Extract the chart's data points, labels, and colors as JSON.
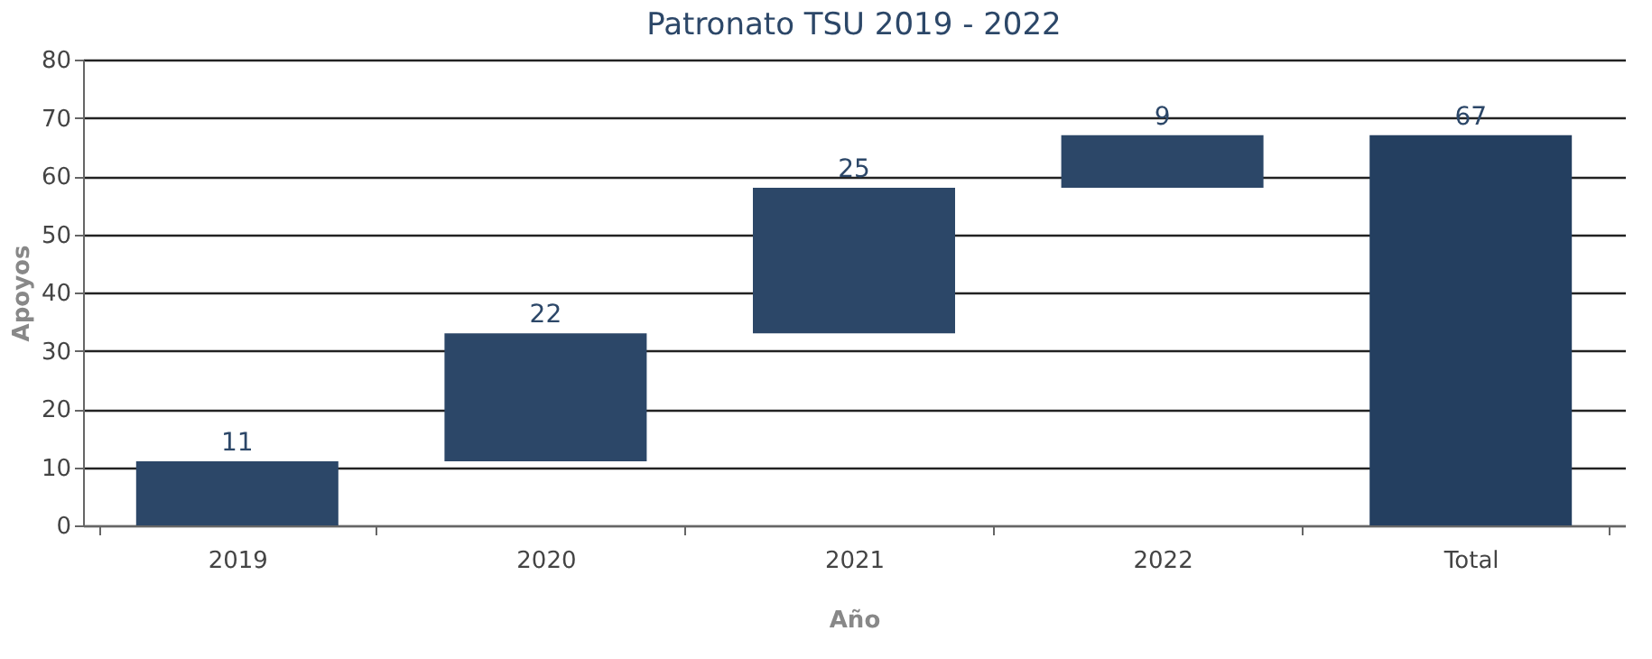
{
  "chart_data": {
    "type": "bar",
    "title": "Patronato TSU 2019 - 2022",
    "xlabel": "Año",
    "ylabel": "Apoyos",
    "categories": [
      "2019",
      "2020",
      "2021",
      "2022",
      "Total"
    ],
    "values": [
      11,
      22,
      25,
      9,
      67
    ],
    "base": [
      0,
      11,
      33,
      58,
      0
    ],
    "colors": [
      "#2c4768",
      "#2c4768",
      "#2c4768",
      "#2c4768",
      "#243f60"
    ],
    "ylim": [
      0,
      80
    ],
    "yticks": [
      0,
      10,
      20,
      30,
      40,
      50,
      60,
      70,
      80
    ],
    "grid": "y",
    "data_labels": true
  }
}
